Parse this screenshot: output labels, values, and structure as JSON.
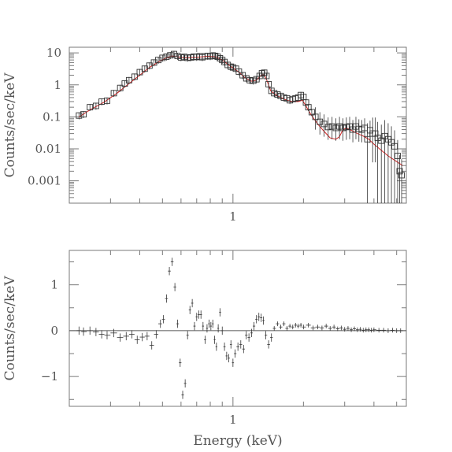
{
  "chart_data": [
    {
      "type": "scatter",
      "panel": "spectrum",
      "title": "",
      "xlabel": "",
      "ylabel": "Counts/sec/keV",
      "xscale": "log",
      "yscale": "log",
      "xlim": [
        0.2,
        5.5
      ],
      "ylim": [
        0.0002,
        15
      ],
      "x_tick_labels": [
        {
          "value": 1,
          "label": "1"
        }
      ],
      "y_tick_labels": [
        {
          "value": 10,
          "label": "10"
        },
        {
          "value": 1,
          "label": "1"
        },
        {
          "value": 0.1,
          "label": "0.1"
        },
        {
          "value": 0.01,
          "label": "0.01"
        },
        {
          "value": 0.001,
          "label": "0.001"
        }
      ],
      "data_color": "#333333",
      "model_color": "#d42020",
      "series": [
        {
          "role": "data",
          "marker": "square",
          "points": [
            [
              0.22,
              0.11
            ],
            [
              0.23,
              0.12
            ],
            [
              0.245,
              0.2
            ],
            [
              0.26,
              0.22
            ],
            [
              0.275,
              0.3
            ],
            [
              0.29,
              0.32
            ],
            [
              0.31,
              0.55
            ],
            [
              0.33,
              0.8
            ],
            [
              0.345,
              1.1
            ],
            [
              0.36,
              1.4
            ],
            [
              0.38,
              1.8
            ],
            [
              0.4,
              2.5
            ],
            [
              0.42,
              3.2
            ],
            [
              0.44,
              4.0
            ],
            [
              0.46,
              5.0
            ],
            [
              0.48,
              6.0
            ],
            [
              0.5,
              7.0
            ],
            [
              0.52,
              7.6
            ],
            [
              0.54,
              8.4
            ],
            [
              0.56,
              9.2
            ],
            [
              0.58,
              8.0
            ],
            [
              0.6,
              7.2
            ],
            [
              0.62,
              7.5
            ],
            [
              0.64,
              7.0
            ],
            [
              0.66,
              7.2
            ],
            [
              0.68,
              7.6
            ],
            [
              0.7,
              7.4
            ],
            [
              0.72,
              7.8
            ],
            [
              0.74,
              7.3
            ],
            [
              0.76,
              7.8
            ],
            [
              0.78,
              8.0
            ],
            [
              0.8,
              7.8
            ],
            [
              0.82,
              8.3
            ],
            [
              0.84,
              8.0
            ],
            [
              0.86,
              7.6
            ],
            [
              0.88,
              6.8
            ],
            [
              0.9,
              6.0
            ],
            [
              0.92,
              5.2
            ],
            [
              0.95,
              4.2
            ],
            [
              0.98,
              3.7
            ],
            [
              1.0,
              3.5
            ],
            [
              1.03,
              3.2
            ],
            [
              1.06,
              2.6
            ],
            [
              1.1,
              2.0
            ],
            [
              1.14,
              1.6
            ],
            [
              1.18,
              1.4
            ],
            [
              1.22,
              1.35
            ],
            [
              1.26,
              1.5
            ],
            [
              1.3,
              1.9
            ],
            [
              1.33,
              2.3
            ],
            [
              1.36,
              2.4
            ],
            [
              1.39,
              1.9
            ],
            [
              1.42,
              1.05
            ],
            [
              1.46,
              0.65
            ],
            [
              1.5,
              0.55
            ],
            [
              1.55,
              0.5
            ],
            [
              1.6,
              0.45
            ],
            [
              1.65,
              0.4
            ],
            [
              1.7,
              0.38
            ],
            [
              1.75,
              0.33
            ],
            [
              1.8,
              0.36
            ],
            [
              1.85,
              0.38
            ],
            [
              1.9,
              0.4
            ],
            [
              1.95,
              0.48
            ],
            [
              2.0,
              0.42
            ],
            [
              2.05,
              0.28
            ],
            [
              2.1,
              0.2
            ],
            [
              2.17,
              0.14
            ],
            [
              2.25,
              0.1
            ],
            [
              2.35,
              0.07
            ],
            [
              2.45,
              0.06
            ],
            [
              2.55,
              0.048
            ],
            [
              2.65,
              0.05
            ],
            [
              2.75,
              0.045
            ],
            [
              2.85,
              0.05
            ],
            [
              2.95,
              0.045
            ],
            [
              3.05,
              0.048
            ],
            [
              3.15,
              0.05
            ],
            [
              3.25,
              0.04
            ],
            [
              3.35,
              0.05
            ],
            [
              3.45,
              0.042
            ],
            [
              3.55,
              0.04
            ],
            [
              3.65,
              0.045
            ],
            [
              3.75,
              0.02
            ],
            [
              3.85,
              0.038
            ],
            [
              3.95,
              0.03
            ],
            [
              4.05,
              0.03
            ],
            [
              4.15,
              0.022
            ],
            [
              4.3,
              0.018
            ],
            [
              4.45,
              0.025
            ],
            [
              4.6,
              0.02
            ],
            [
              4.75,
              0.016
            ],
            [
              4.9,
              0.012
            ],
            [
              5.05,
              0.006
            ],
            [
              5.15,
              0.002
            ],
            [
              5.25,
              0.0015
            ]
          ]
        },
        {
          "role": "model",
          "points": [
            [
              0.22,
              0.1
            ],
            [
              0.25,
              0.18
            ],
            [
              0.28,
              0.28
            ],
            [
              0.32,
              0.55
            ],
            [
              0.36,
              1.1
            ],
            [
              0.4,
              2.0
            ],
            [
              0.44,
              3.5
            ],
            [
              0.48,
              5.2
            ],
            [
              0.52,
              7.0
            ],
            [
              0.55,
              8.0
            ],
            [
              0.58,
              7.5
            ],
            [
              0.62,
              7.0
            ],
            [
              0.7,
              7.3
            ],
            [
              0.78,
              7.8
            ],
            [
              0.84,
              7.6
            ],
            [
              0.9,
              6.0
            ],
            [
              0.96,
              4.2
            ],
            [
              1.0,
              3.4
            ],
            [
              1.06,
              2.5
            ],
            [
              1.12,
              1.7
            ],
            [
              1.2,
              1.3
            ],
            [
              1.26,
              1.4
            ],
            [
              1.32,
              2.0
            ],
            [
              1.36,
              2.1
            ],
            [
              1.4,
              1.3
            ],
            [
              1.45,
              0.65
            ],
            [
              1.55,
              0.45
            ],
            [
              1.7,
              0.33
            ],
            [
              1.8,
              0.3
            ],
            [
              1.9,
              0.3
            ],
            [
              1.98,
              0.33
            ],
            [
              2.05,
              0.22
            ],
            [
              2.15,
              0.12
            ],
            [
              2.3,
              0.06
            ],
            [
              2.45,
              0.035
            ],
            [
              2.6,
              0.022
            ],
            [
              2.75,
              0.02
            ],
            [
              2.85,
              0.024
            ],
            [
              2.95,
              0.04
            ],
            [
              3.05,
              0.045
            ],
            [
              3.2,
              0.038
            ],
            [
              3.4,
              0.03
            ],
            [
              3.6,
              0.025
            ],
            [
              3.8,
              0.02
            ],
            [
              4.0,
              0.014
            ],
            [
              4.3,
              0.009
            ],
            [
              4.6,
              0.006
            ],
            [
              5.0,
              0.004
            ],
            [
              5.3,
              0.003
            ]
          ]
        }
      ]
    },
    {
      "type": "scatter",
      "panel": "residuals",
      "title": "",
      "xlabel": "Energy (keV)",
      "ylabel": "Counts/sec/keV",
      "xscale": "log",
      "yscale": "linear",
      "xlim": [
        0.2,
        5.5
      ],
      "ylim": [
        -1.65,
        1.75
      ],
      "x_tick_labels": [
        {
          "value": 1,
          "label": "1"
        }
      ],
      "y_tick_labels": [
        {
          "value": 1,
          "label": "1"
        },
        {
          "value": 0,
          "label": "0"
        },
        {
          "value": -1,
          "label": "−1"
        }
      ],
      "reference_line": 0,
      "data_color": "#333333",
      "series": [
        {
          "role": "residuals",
          "marker": "cross",
          "points": [
            [
              0.22,
              0.0
            ],
            [
              0.23,
              -0.02
            ],
            [
              0.245,
              0.0
            ],
            [
              0.26,
              -0.03
            ],
            [
              0.275,
              -0.08
            ],
            [
              0.29,
              -0.1
            ],
            [
              0.31,
              -0.05
            ],
            [
              0.33,
              -0.15
            ],
            [
              0.35,
              -0.12
            ],
            [
              0.37,
              -0.08
            ],
            [
              0.39,
              -0.2
            ],
            [
              0.41,
              -0.14
            ],
            [
              0.43,
              -0.12
            ],
            [
              0.45,
              -0.32
            ],
            [
              0.47,
              -0.08
            ],
            [
              0.49,
              0.15
            ],
            [
              0.505,
              0.25
            ],
            [
              0.52,
              0.7
            ],
            [
              0.535,
              1.3
            ],
            [
              0.55,
              1.5
            ],
            [
              0.565,
              0.95
            ],
            [
              0.58,
              0.15
            ],
            [
              0.595,
              -0.7
            ],
            [
              0.61,
              -1.4
            ],
            [
              0.625,
              -1.15
            ],
            [
              0.64,
              -0.1
            ],
            [
              0.655,
              0.45
            ],
            [
              0.67,
              0.6
            ],
            [
              0.685,
              0.1
            ],
            [
              0.7,
              0.3
            ],
            [
              0.715,
              0.35
            ],
            [
              0.73,
              0.35
            ],
            [
              0.745,
              0.1
            ],
            [
              0.76,
              -0.2
            ],
            [
              0.775,
              0.05
            ],
            [
              0.79,
              0.15
            ],
            [
              0.805,
              0.1
            ],
            [
              0.82,
              0.15
            ],
            [
              0.835,
              -0.2
            ],
            [
              0.85,
              -0.35
            ],
            [
              0.865,
              0.05
            ],
            [
              0.88,
              0.4
            ],
            [
              0.9,
              0.0
            ],
            [
              0.92,
              -0.35
            ],
            [
              0.94,
              -0.55
            ],
            [
              0.96,
              -0.6
            ],
            [
              0.98,
              -0.3
            ],
            [
              1.0,
              -0.7
            ],
            [
              1.02,
              -0.5
            ],
            [
              1.05,
              -0.35
            ],
            [
              1.08,
              -0.3
            ],
            [
              1.11,
              -0.4
            ],
            [
              1.14,
              -0.1
            ],
            [
              1.17,
              -0.15
            ],
            [
              1.2,
              -0.05
            ],
            [
              1.23,
              0.1
            ],
            [
              1.26,
              0.25
            ],
            [
              1.29,
              0.3
            ],
            [
              1.32,
              0.28
            ],
            [
              1.35,
              0.22
            ],
            [
              1.38,
              -0.1
            ],
            [
              1.42,
              -0.3
            ],
            [
              1.46,
              -0.15
            ],
            [
              1.5,
              0.05
            ],
            [
              1.55,
              0.15
            ],
            [
              1.6,
              0.08
            ],
            [
              1.65,
              0.15
            ],
            [
              1.7,
              0.05
            ],
            [
              1.75,
              0.1
            ],
            [
              1.8,
              0.08
            ],
            [
              1.85,
              0.12
            ],
            [
              1.9,
              0.1
            ],
            [
              1.95,
              0.12
            ],
            [
              2.0,
              0.08
            ],
            [
              2.1,
              0.12
            ],
            [
              2.2,
              0.06
            ],
            [
              2.3,
              0.08
            ],
            [
              2.4,
              0.06
            ],
            [
              2.5,
              0.1
            ],
            [
              2.6,
              0.05
            ],
            [
              2.7,
              0.08
            ],
            [
              2.8,
              0.04
            ],
            [
              2.9,
              0.06
            ],
            [
              3.0,
              0.03
            ],
            [
              3.1,
              0.05
            ],
            [
              3.2,
              0.02
            ],
            [
              3.3,
              0.04
            ],
            [
              3.4,
              0.02
            ],
            [
              3.5,
              0.03
            ],
            [
              3.6,
              0.01
            ],
            [
              3.7,
              0.02
            ],
            [
              3.8,
              0.02
            ],
            [
              3.9,
              0.01
            ],
            [
              4.0,
              0.02
            ],
            [
              4.2,
              0.01
            ],
            [
              4.4,
              0.01
            ],
            [
              4.6,
              0.0
            ],
            [
              4.8,
              0.01
            ],
            [
              5.0,
              0.0
            ],
            [
              5.2,
              0.0
            ]
          ]
        }
      ]
    }
  ]
}
